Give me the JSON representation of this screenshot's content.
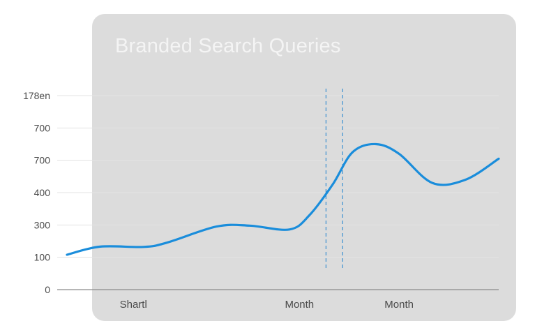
{
  "chart_data": {
    "type": "line",
    "title": "Branded Search Queries",
    "xlabel": "",
    "ylabel": "",
    "y_tick_labels": [
      "0",
      "100",
      "300",
      "400",
      "700",
      "700",
      "178en"
    ],
    "x_tick_labels": [
      {
        "label": "Shartl",
        "x": 2
      },
      {
        "label": "Month",
        "x": 7
      },
      {
        "label": "Month",
        "x": 10
      }
    ],
    "xlim": [
      0,
      13
    ],
    "ylim": [
      0,
      6
    ],
    "gridlines": true,
    "legend": "none",
    "series": [
      {
        "name": "Branded Search Queries",
        "color": "#1a8ddb",
        "x": [
          0,
          1,
          2.3,
          3,
          4.5,
          5.5,
          6.7,
          7.3,
          8,
          8.6,
          9.3,
          10,
          11,
          12,
          13
        ],
        "y": [
          1.08,
          1.33,
          1.32,
          1.45,
          1.95,
          1.98,
          1.86,
          2.3,
          3.25,
          4.25,
          4.5,
          4.2,
          3.3,
          3.4,
          4.05
        ]
      }
    ],
    "annotations": [
      {
        "type": "vertical-dashed-line",
        "x": 7.8
      },
      {
        "type": "vertical-dashed-line",
        "x": 8.3
      }
    ]
  }
}
